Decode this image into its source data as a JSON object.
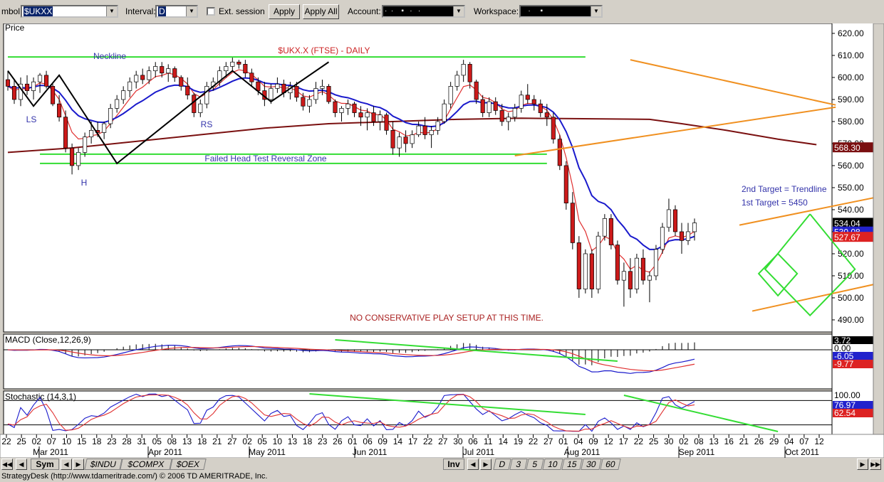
{
  "toolbar": {
    "symbol_label": "mbol:",
    "symbol_value": "$UKXX",
    "interval_label": "Interval:",
    "interval_value": "D",
    "ext_session_label": "Ext. session",
    "apply_label": "Apply",
    "apply_all_label": "Apply All",
    "account_label": "Account:",
    "workspace_label": "Workspace:"
  },
  "bottom_bar": {
    "sym_tab": "Sym",
    "symbol_tabs": [
      "$INDU",
      "$COMPX",
      "$OEX"
    ],
    "inv_tab": "Inv",
    "interval_tabs": [
      "D",
      "3",
      "5",
      "10",
      "15",
      "30",
      "60"
    ]
  },
  "status_text": "StrategyDesk (http://www.tdameritrade.com/) © 2006 TD AMERITRADE, Inc.",
  "chart_data": {
    "type": "candlestick",
    "title": "$UKX.X (FTSE) - DAILY",
    "price_panel_label": "Price",
    "y_ticks": [
      620,
      610,
      600,
      590,
      580,
      570,
      560,
      550,
      540,
      530,
      520,
      510,
      500,
      490
    ],
    "y_tick_labels": [
      "620.00",
      "610.00",
      "600.00",
      "590.00",
      "580.00",
      "570.00",
      "560.00",
      "550.00",
      "540.00",
      "530.00",
      "520.00",
      "510.00",
      "500.00",
      "490.00"
    ],
    "ylim": [
      484.5,
      624.5
    ],
    "price_badges": [
      {
        "text": "568.30",
        "value": 568.3,
        "bg": "#7a0f10",
        "fg": "#ffffff"
      },
      {
        "text": "534.04",
        "value": 534.04,
        "bg": "#000000",
        "fg": "#ffffff"
      },
      {
        "text": "530.08",
        "value": 530.08,
        "bg": "#2222cc",
        "fg": "#ffffff"
      },
      {
        "text": "527.67",
        "value": 527.67,
        "bg": "#dd2222",
        "fg": "#ffffff"
      }
    ],
    "date_tick_labels": [
      "22",
      "25",
      "02",
      "07",
      "10",
      "15",
      "18",
      "23",
      "28",
      "31",
      "05",
      "08",
      "13",
      "18",
      "21",
      "27",
      "02",
      "05",
      "10",
      "13",
      "18",
      "23",
      "26",
      "01",
      "06",
      "09",
      "14",
      "17",
      "22",
      "27",
      "30",
      "06",
      "11",
      "14",
      "19",
      "22",
      "27",
      "01",
      "04",
      "09",
      "12",
      "17",
      "22",
      "25",
      "30",
      "02",
      "08",
      "13",
      "16",
      "21",
      "26",
      "29",
      "04",
      "07",
      "12"
    ],
    "month_labels": [
      "Mar 2011",
      "Apr 2011",
      "May 2011",
      "Jun 2011",
      "Jul 2011",
      "Aug 2011",
      "Sep 2011",
      "Oct 2011"
    ],
    "annotations": [
      {
        "text": "Neckline"
      },
      {
        "text": "LS"
      },
      {
        "text": "H"
      },
      {
        "text": "RS"
      },
      {
        "text": "Failed Head Test Reversal Zone"
      },
      {
        "text": "2nd Target = Trendline"
      },
      {
        "text": "1st Target = 5450"
      },
      {
        "text": "NO CONSERVATIVE PLAY SETUP AT THIS TIME."
      }
    ],
    "candles": [
      [
        599,
        603,
        594,
        596
      ],
      [
        596,
        599,
        588,
        590
      ],
      [
        590,
        600,
        587,
        597
      ],
      [
        597,
        601,
        592,
        594
      ],
      [
        594,
        600,
        590,
        598
      ],
      [
        598,
        602,
        593,
        601
      ],
      [
        601,
        603,
        595,
        596
      ],
      [
        596,
        597,
        587,
        588
      ],
      [
        588,
        592,
        580,
        582
      ],
      [
        582,
        585,
        566,
        568
      ],
      [
        568,
        570,
        556,
        560
      ],
      [
        560,
        568,
        558,
        566
      ],
      [
        566,
        575,
        564,
        573
      ],
      [
        573,
        580,
        570,
        576
      ],
      [
        576,
        580,
        573,
        575
      ],
      [
        575,
        580,
        572,
        579
      ],
      [
        579,
        588,
        577,
        586
      ],
      [
        586,
        592,
        584,
        590
      ],
      [
        590,
        596,
        588,
        594
      ],
      [
        594,
        600,
        591,
        598
      ],
      [
        598,
        603,
        595,
        601
      ],
      [
        601,
        604,
        597,
        599
      ],
      [
        599,
        605,
        597,
        603
      ],
      [
        603,
        607,
        600,
        605
      ],
      [
        605,
        607,
        600,
        602
      ],
      [
        602,
        606,
        598,
        604
      ],
      [
        604,
        605,
        598,
        600
      ],
      [
        600,
        601,
        594,
        596
      ],
      [
        596,
        600,
        590,
        592
      ],
      [
        592,
        593,
        582,
        584
      ],
      [
        584,
        590,
        582,
        588
      ],
      [
        588,
        598,
        586,
        596
      ],
      [
        596,
        600,
        594,
        598
      ],
      [
        598,
        605,
        596,
        603
      ],
      [
        603,
        607,
        600,
        605
      ],
      [
        605,
        609,
        603,
        607
      ],
      [
        607,
        608,
        604,
        606
      ],
      [
        606,
        608,
        600,
        602
      ],
      [
        602,
        604,
        596,
        598
      ],
      [
        598,
        600,
        592,
        594
      ],
      [
        594,
        598,
        587,
        590
      ],
      [
        590,
        597,
        588,
        595
      ],
      [
        595,
        600,
        593,
        597
      ],
      [
        597,
        599,
        591,
        593
      ],
      [
        593,
        598,
        590,
        596
      ],
      [
        596,
        598,
        589,
        591
      ],
      [
        591,
        593,
        585,
        587
      ],
      [
        587,
        592,
        584,
        590
      ],
      [
        590,
        598,
        588,
        595
      ],
      [
        595,
        599,
        592,
        596
      ],
      [
        596,
        597,
        588,
        589
      ],
      [
        589,
        590,
        582,
        584
      ],
      [
        584,
        587,
        580,
        586
      ],
      [
        586,
        590,
        583,
        588
      ],
      [
        588,
        589,
        582,
        584
      ],
      [
        584,
        587,
        578,
        582
      ],
      [
        582,
        586,
        576,
        584
      ],
      [
        584,
        587,
        578,
        580
      ],
      [
        580,
        585,
        576,
        583
      ],
      [
        583,
        584,
        574,
        576
      ],
      [
        576,
        580,
        565,
        568
      ],
      [
        568,
        575,
        564,
        573
      ],
      [
        573,
        576,
        566,
        570
      ],
      [
        570,
        576,
        568,
        574
      ],
      [
        574,
        580,
        573,
        578
      ],
      [
        578,
        582,
        572,
        574
      ],
      [
        574,
        578,
        568,
        576
      ],
      [
        576,
        582,
        574,
        580
      ],
      [
        580,
        590,
        579,
        588
      ],
      [
        588,
        598,
        586,
        596
      ],
      [
        596,
        603,
        594,
        601
      ],
      [
        601,
        608,
        598,
        606
      ],
      [
        606,
        607,
        595,
        598
      ],
      [
        598,
        599,
        588,
        590
      ],
      [
        590,
        592,
        582,
        584
      ],
      [
        584,
        591,
        582,
        589
      ],
      [
        589,
        591,
        583,
        585
      ],
      [
        585,
        588,
        578,
        580
      ],
      [
        580,
        584,
        576,
        582
      ],
      [
        582,
        588,
        580,
        586
      ],
      [
        586,
        594,
        584,
        592
      ],
      [
        592,
        597,
        588,
        590
      ],
      [
        590,
        592,
        585,
        588
      ],
      [
        588,
        590,
        582,
        584
      ],
      [
        584,
        588,
        578,
        582
      ],
      [
        582,
        584,
        570,
        572
      ],
      [
        572,
        574,
        558,
        560
      ],
      [
        560,
        562,
        540,
        543
      ],
      [
        543,
        548,
        522,
        525
      ],
      [
        525,
        528,
        500,
        504
      ],
      [
        504,
        522,
        502,
        520
      ],
      [
        520,
        522,
        500,
        504
      ],
      [
        504,
        530,
        502,
        528
      ],
      [
        528,
        538,
        526,
        536
      ],
      [
        536,
        538,
        522,
        524
      ],
      [
        524,
        526,
        506,
        508
      ],
      [
        508,
        516,
        496,
        512
      ],
      [
        512,
        518,
        500,
        504
      ],
      [
        504,
        520,
        502,
        518
      ],
      [
        518,
        522,
        506,
        508
      ],
      [
        508,
        512,
        498,
        510
      ],
      [
        510,
        524,
        508,
        522
      ],
      [
        522,
        534,
        520,
        532
      ],
      [
        532,
        545,
        530,
        540
      ],
      [
        540,
        542,
        528,
        530
      ],
      [
        530,
        534,
        520,
        526
      ],
      [
        526,
        534,
        524,
        530
      ],
      [
        530,
        536,
        526,
        534
      ]
    ],
    "targets": [
      {
        "text": "2nd Target = Trendline",
        "value": 549
      },
      {
        "text": "1st Target = 5450",
        "value": 545
      }
    ],
    "macd": {
      "label": "MACD (Close,12,26,9)",
      "badges": [
        {
          "text": "3.72",
          "bg": "#000000",
          "fg": "#ffffff"
        },
        {
          "text": "0.00",
          "bg": "#ffffff",
          "fg": "#000000"
        },
        {
          "text": "-6.05",
          "bg": "#2222cc",
          "fg": "#ffffff"
        },
        {
          "text": "-9.77",
          "bg": "#dd2222",
          "fg": "#ffffff"
        }
      ]
    },
    "stochastic": {
      "label": "Stochastic (14,3,1)",
      "badges": [
        {
          "text": "100.00",
          "bg": "#ffffff",
          "fg": "#000000"
        },
        {
          "text": "76.97",
          "bg": "#2222cc",
          "fg": "#ffffff"
        },
        {
          "text": "62.54",
          "bg": "#dd2222",
          "fg": "#ffffff"
        }
      ]
    },
    "colors": {
      "ma_blue": "#1a1acc",
      "ma_red": "#e03030",
      "ma_long": "#7a1010",
      "trend_green": "#33dd33",
      "trend_orange": "#f09020",
      "pattern_black": "#000000",
      "candle_up": "#ffffff",
      "candle_down": "#cc1a1a",
      "annotation_blue": "#3333aa",
      "annotation_red": "#aa2222"
    }
  }
}
